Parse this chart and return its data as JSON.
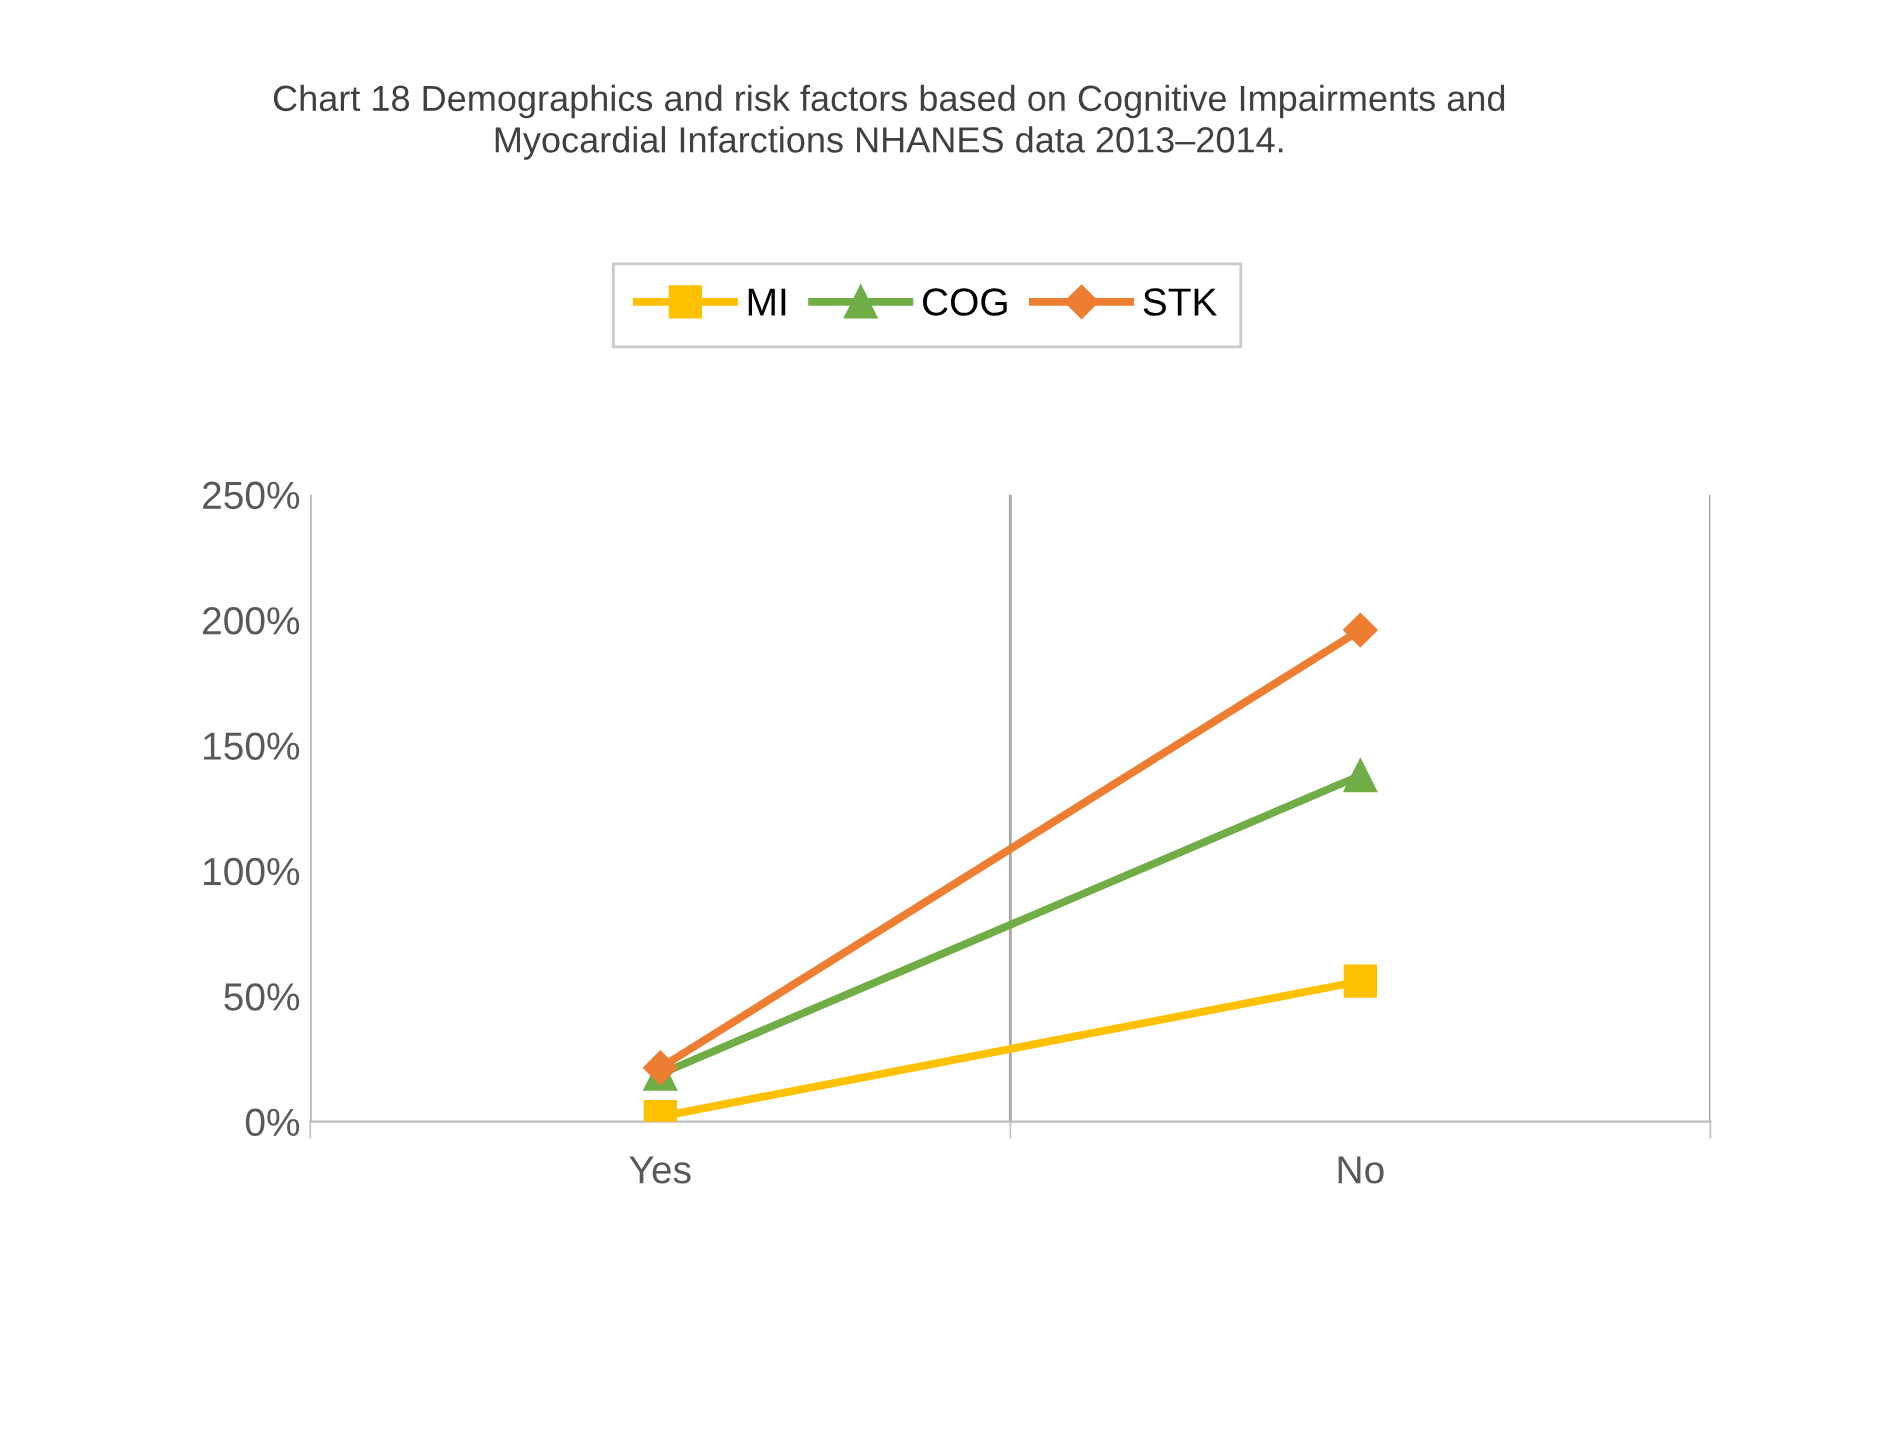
{
  "chart_data": {
    "type": "line",
    "title": "Chart 18 Demographics and risk factors based on Cognitive Impairments and\nMyocardial Infarctions NHANES data 2013–2014.",
    "categories": [
      "Yes",
      "No"
    ],
    "series": [
      {
        "name": "MI",
        "color": "#ffc000",
        "marker": "square",
        "values": [
          2,
          56
        ]
      },
      {
        "name": "COG",
        "color": "#70ad47",
        "marker": "triangle",
        "values": [
          19,
          138
        ]
      },
      {
        "name": "STK",
        "color": "#ed7d31",
        "marker": "diamond",
        "values": [
          21.5,
          196
        ]
      }
    ],
    "ylim": [
      0,
      250
    ],
    "yticks": [
      {
        "value": 0,
        "label": "0%"
      },
      {
        "value": 50,
        "label": "50%"
      },
      {
        "value": 100,
        "label": "100%"
      },
      {
        "value": 150,
        "label": "150%"
      },
      {
        "value": 200,
        "label": "200%"
      },
      {
        "value": 250,
        "label": "250%"
      }
    ],
    "grid": "x",
    "legend": "top",
    "line_style": "solid"
  }
}
